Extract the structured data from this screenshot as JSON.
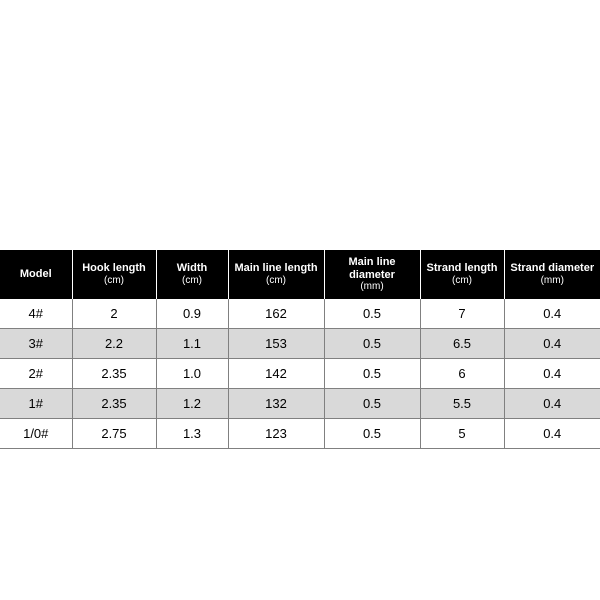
{
  "table": {
    "type": "table",
    "background_color": "#ffffff",
    "header_bg": "#000000",
    "header_fg": "#ffffff",
    "header_fontsize_main": 11,
    "header_fontsize_sub": 10,
    "header_fontweight": 700,
    "cell_fontsize": 13,
    "cell_fg": "#000000",
    "row_odd_bg": "#ffffff",
    "row_even_bg": "#d9d9d9",
    "grid_color": "#808080",
    "header_divider_color": "#ffffff",
    "col_widths_pct": [
      12,
      14,
      12,
      16,
      16,
      14,
      16
    ],
    "columns": [
      {
        "label": "Model",
        "sub": ""
      },
      {
        "label": "Hook length",
        "sub": "(cm)"
      },
      {
        "label": "Width",
        "sub": "(cm)"
      },
      {
        "label": "Main line length",
        "sub": "(cm)"
      },
      {
        "label": "Main line diameter",
        "sub": "(mm)"
      },
      {
        "label": "Strand length",
        "sub": "(cm)"
      },
      {
        "label": "Strand diameter",
        "sub": "(mm)"
      }
    ],
    "rows": [
      [
        "4#",
        "2",
        "0.9",
        "162",
        "0.5",
        "7",
        "0.4"
      ],
      [
        "3#",
        "2.2",
        "1.1",
        "153",
        "0.5",
        "6.5",
        "0.4"
      ],
      [
        "2#",
        "2.35",
        "1.0",
        "142",
        "0.5",
        "6",
        "0.4"
      ],
      [
        "1#",
        "2.35",
        "1.2",
        "132",
        "0.5",
        "5.5",
        "0.4"
      ],
      [
        "1/0#",
        "2.75",
        "1.3",
        "123",
        "0.5",
        "5",
        "0.4"
      ]
    ]
  }
}
